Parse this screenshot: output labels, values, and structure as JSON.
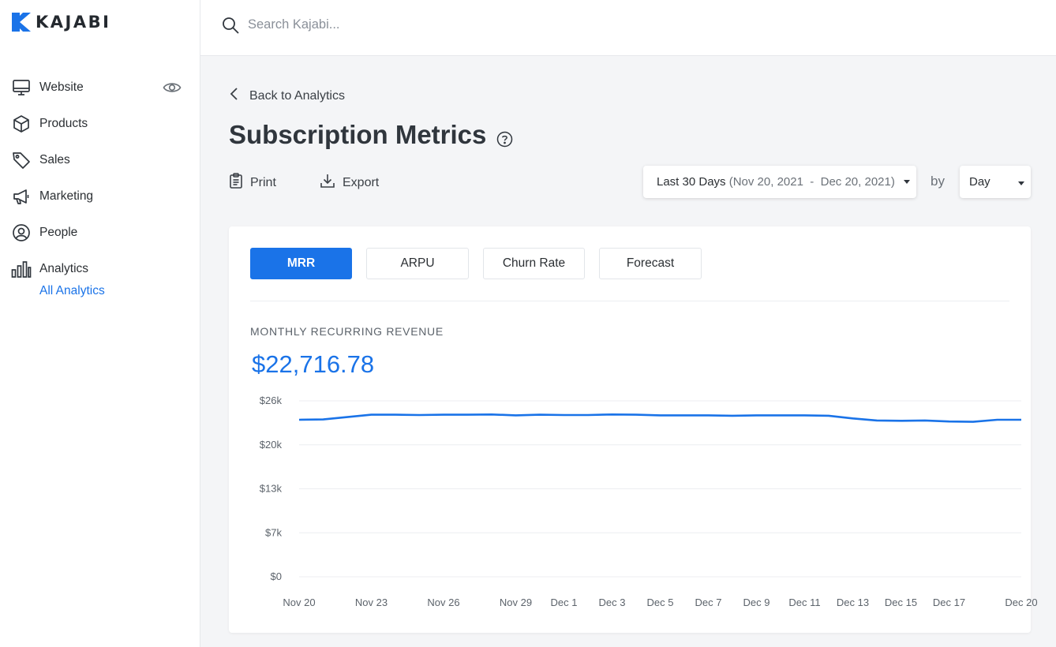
{
  "brand": {
    "name": "KAJABI",
    "accent": "#1a73e8"
  },
  "sidebar": {
    "items": [
      {
        "label": "Website",
        "icon": "monitor-icon"
      },
      {
        "label": "Products",
        "icon": "box-icon"
      },
      {
        "label": "Sales",
        "icon": "tag-icon"
      },
      {
        "label": "Marketing",
        "icon": "megaphone-icon"
      },
      {
        "label": "People",
        "icon": "user-circle-icon"
      },
      {
        "label": "Analytics",
        "icon": "bar-chart-icon"
      }
    ],
    "sub_item": "All Analytics"
  },
  "search": {
    "placeholder": "Search Kajabi..."
  },
  "back_link": "Back to Analytics",
  "page_title": "Subscription Metrics",
  "toolbar": {
    "print": "Print",
    "export": "Export"
  },
  "date_range": {
    "label": "Last 30 Days",
    "range": "(Nov 20, 2021  -  Dec 20, 2021)"
  },
  "by_label": "by",
  "granularity": "Day",
  "tabs": [
    "MRR",
    "ARPU",
    "Churn Rate",
    "Forecast"
  ],
  "active_tab": "MRR",
  "metric": {
    "label": "MONTHLY RECURRING REVENUE",
    "value": "$22,716.78"
  },
  "chart_data": {
    "type": "line",
    "title": "",
    "xlabel": "",
    "ylabel": "",
    "ylim": [
      0,
      26000
    ],
    "y_ticks": [
      {
        "value": 0,
        "label": "$0"
      },
      {
        "value": 6500,
        "label": "$7k"
      },
      {
        "value": 13000,
        "label": "$13k"
      },
      {
        "value": 19500,
        "label": "$20k"
      },
      {
        "value": 26000,
        "label": "$26k"
      }
    ],
    "x_tick_labels": [
      "Nov 20",
      "Nov 23",
      "Nov 26",
      "Nov 29",
      "Dec 1",
      "Dec 3",
      "Dec 5",
      "Dec 7",
      "Dec 9",
      "Dec 11",
      "Dec 13",
      "Dec 15",
      "Dec 17",
      "Dec 20"
    ],
    "x_tick_days": [
      0,
      3,
      6,
      9,
      11,
      13,
      15,
      17,
      19,
      21,
      23,
      25,
      27,
      30
    ],
    "grid": true,
    "line_color": "#1a73e8",
    "series": [
      {
        "x": [
          "Nov 20",
          "Nov 21",
          "Nov 22",
          "Nov 23",
          "Nov 24",
          "Nov 25",
          "Nov 26",
          "Nov 27",
          "Nov 28",
          "Nov 29",
          "Nov 30",
          "Dec 1",
          "Dec 2",
          "Dec 3",
          "Dec 4",
          "Dec 5",
          "Dec 6",
          "Dec 7",
          "Dec 8",
          "Dec 9",
          "Dec 10",
          "Dec 11",
          "Dec 12",
          "Dec 13",
          "Dec 14",
          "Dec 15",
          "Dec 16",
          "Dec 17",
          "Dec 18",
          "Dec 19",
          "Dec 20"
        ],
        "values": [
          23200,
          23250,
          23600,
          23950,
          23950,
          23900,
          23950,
          23950,
          23980,
          23850,
          23950,
          23900,
          23900,
          23980,
          23950,
          23850,
          23850,
          23850,
          23800,
          23850,
          23850,
          23850,
          23800,
          23400,
          23100,
          23050,
          23100,
          22950,
          22900,
          23200,
          23200
        ]
      }
    ]
  }
}
